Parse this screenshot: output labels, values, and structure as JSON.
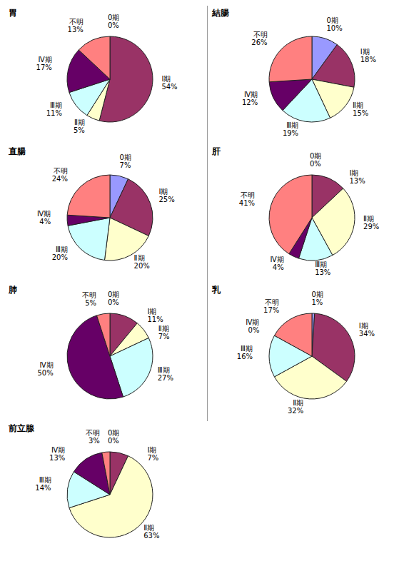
{
  "chart_data": [
    {
      "type": "pie",
      "title": "胃",
      "categories": [
        "0期",
        "Ⅰ期",
        "Ⅱ期",
        "Ⅲ期",
        "Ⅳ期",
        "不明"
      ],
      "values": [
        0,
        54,
        5,
        11,
        17,
        13
      ],
      "value_labels": [
        "0%",
        "54%",
        "5%",
        "11%",
        "17%",
        "13%"
      ],
      "colors": [
        "#9999ff",
        "#993366",
        "#ffffcc",
        "#ccffff",
        "#660066",
        "#ff8080"
      ],
      "data_labels": true
    },
    {
      "type": "pie",
      "title": "結腸",
      "categories": [
        "0期",
        "Ⅰ期",
        "Ⅱ期",
        "Ⅲ期",
        "Ⅳ期",
        "不明"
      ],
      "values": [
        10,
        18,
        15,
        19,
        12,
        26
      ],
      "value_labels": [
        "10%",
        "18%",
        "15%",
        "19%",
        "12%",
        "26%"
      ],
      "colors": [
        "#9999ff",
        "#993366",
        "#ffffcc",
        "#ccffff",
        "#660066",
        "#ff8080"
      ],
      "data_labels": true
    },
    {
      "type": "pie",
      "title": "直腸",
      "categories": [
        "0期",
        "Ⅰ期",
        "Ⅱ期",
        "Ⅲ期",
        "Ⅳ期",
        "不明"
      ],
      "values": [
        7,
        25,
        20,
        20,
        4,
        24
      ],
      "value_labels": [
        "7%",
        "25%",
        "20%",
        "20%",
        "4%",
        "24%"
      ],
      "colors": [
        "#9999ff",
        "#993366",
        "#ffffcc",
        "#ccffff",
        "#660066",
        "#ff8080"
      ],
      "data_labels": true
    },
    {
      "type": "pie",
      "title": "肝",
      "categories": [
        "0期",
        "Ⅰ期",
        "Ⅱ期",
        "Ⅲ期",
        "Ⅳ期",
        "不明"
      ],
      "values": [
        0,
        13,
        29,
        13,
        4,
        41
      ],
      "value_labels": [
        "0%",
        "13%",
        "29%",
        "13%",
        "4%",
        "41%"
      ],
      "colors": [
        "#9999ff",
        "#993366",
        "#ffffcc",
        "#ccffff",
        "#660066",
        "#ff8080"
      ],
      "data_labels": true
    },
    {
      "type": "pie",
      "title": "肺",
      "categories": [
        "0期",
        "Ⅰ期",
        "Ⅱ期",
        "Ⅲ期",
        "Ⅳ期",
        "不明"
      ],
      "values": [
        0,
        11,
        7,
        27,
        50,
        5
      ],
      "value_labels": [
        "0%",
        "11%",
        "7%",
        "27%",
        "50%",
        "5%"
      ],
      "colors": [
        "#9999ff",
        "#993366",
        "#ffffcc",
        "#ccffff",
        "#660066",
        "#ff8080"
      ],
      "data_labels": true
    },
    {
      "type": "pie",
      "title": "乳",
      "categories": [
        "0期",
        "Ⅰ期",
        "Ⅱ期",
        "Ⅲ期",
        "Ⅳ期",
        "不明"
      ],
      "values": [
        1,
        34,
        32,
        16,
        0,
        17
      ],
      "value_labels": [
        "1%",
        "34%",
        "32%",
        "16%",
        "0%",
        "17%"
      ],
      "colors": [
        "#9999ff",
        "#993366",
        "#ffffcc",
        "#ccffff",
        "#660066",
        "#ff8080"
      ],
      "data_labels": true
    },
    {
      "type": "pie",
      "title": "前立腺",
      "categories": [
        "0期",
        "Ⅰ期",
        "Ⅱ期",
        "Ⅲ期",
        "Ⅳ期",
        "不明"
      ],
      "values": [
        0,
        7,
        63,
        14,
        13,
        3
      ],
      "value_labels": [
        "0%",
        "7%",
        "63%",
        "14%",
        "13%",
        "3%"
      ],
      "colors": [
        "#9999ff",
        "#993366",
        "#ffffcc",
        "#ccffff",
        "#660066",
        "#ff8080"
      ],
      "data_labels": true
    }
  ]
}
